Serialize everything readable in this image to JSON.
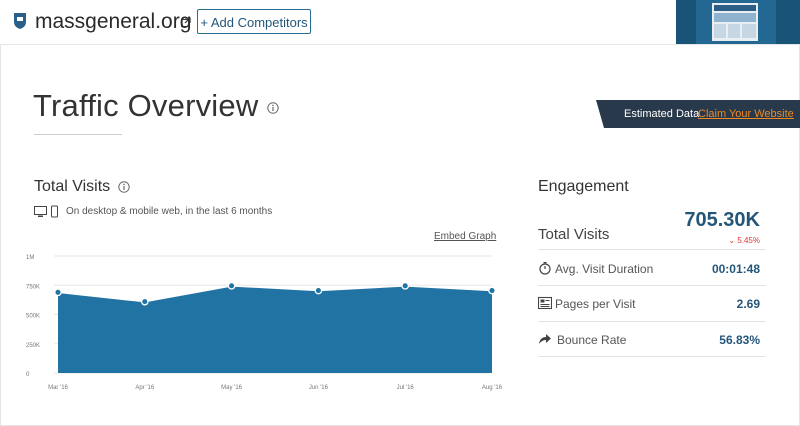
{
  "header": {
    "domain": "massgeneral.org",
    "add_competitors_label": "+ Add Competitors"
  },
  "page_title": "Traffic Overview",
  "estimated": {
    "text": "Estimated Data",
    "link": "Claim Your Website",
    "link_color": "#f08a24",
    "banner_color": "#27394b"
  },
  "total_visits_section": {
    "title": "Total Visits",
    "subtitle": "On desktop & mobile web, in the last 6 months",
    "embed_label": "Embed Graph"
  },
  "chart_data": {
    "type": "area",
    "x": [
      "Mar '16",
      "Apr '16",
      "May '16",
      "Jun '16",
      "Jul '16",
      "Aug '16"
    ],
    "y_ticks": [
      "0",
      "250K",
      "500K",
      "750K",
      "1M"
    ],
    "ylim": [
      0,
      1000000
    ],
    "series": [
      {
        "values": [
          690000,
          610000,
          745000,
          705000,
          745000,
          705000
        ],
        "color": "#2173a4"
      }
    ],
    "grid": true
  },
  "engagement": {
    "title": "Engagement",
    "total_visits_label": "Total Visits",
    "total_visits_value": "705.30K",
    "total_visits_change": "5.45%",
    "rows": [
      {
        "label": "Avg. Visit Duration",
        "value": "00:01:48",
        "icon": "stopwatch-icon"
      },
      {
        "label": "Pages per Visit",
        "value": "2.69",
        "icon": "pages-icon"
      },
      {
        "label": "Bounce Rate",
        "value": "56.83%",
        "icon": "bounce-arrow-icon"
      }
    ],
    "accent": "#24567a",
    "negative_color": "#dd3333"
  }
}
